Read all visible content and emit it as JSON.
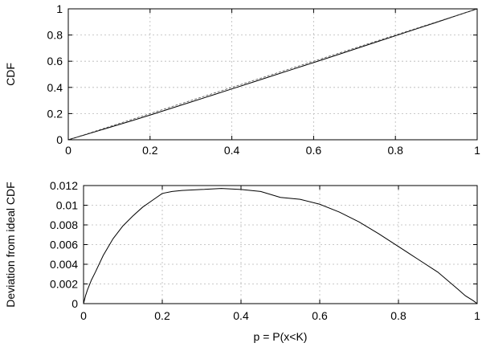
{
  "chart_data": [
    {
      "type": "line",
      "title": "",
      "xlabel": "",
      "ylabel": "CDF",
      "xlim": [
        0,
        1
      ],
      "ylim": [
        0,
        1
      ],
      "xticks": [
        "0",
        "0.2",
        "0.4",
        "0.6",
        "0.8",
        "1"
      ],
      "yticks": [
        "0",
        "0.2",
        "0.4",
        "0.6",
        "0.8",
        "1"
      ],
      "xtick_values": [
        0,
        0.2,
        0.4,
        0.6,
        0.8,
        1
      ],
      "ytick_values": [
        0,
        0.2,
        0.4,
        0.6,
        0.8,
        1
      ],
      "grid": true,
      "series": [
        {
          "x": [
            0,
            0.05,
            0.1,
            0.15,
            0.2,
            0.25,
            0.3,
            0.35,
            0.4,
            0.45,
            0.5,
            0.55,
            0.6,
            0.65,
            0.7,
            0.75,
            0.8,
            0.85,
            0.9,
            0.95,
            1
          ],
          "y": [
            0,
            0.0465,
            0.0935,
            0.1405,
            0.1888,
            0.2386,
            0.2884,
            0.3383,
            0.3884,
            0.4386,
            0.4892,
            0.5396,
            0.5899,
            0.6402,
            0.6918,
            0.743,
            0.7942,
            0.8455,
            0.8967,
            0.9484,
            1
          ]
        },
        {
          "x": [
            0,
            1
          ],
          "y": [
            0,
            1
          ]
        }
      ]
    },
    {
      "type": "line",
      "title": "",
      "xlabel": "p = P(x<K)",
      "ylabel": "Deviation from ideal CDF",
      "xlim": [
        0,
        1
      ],
      "ylim": [
        0,
        0.012
      ],
      "xticks": [
        "0",
        "0.2",
        "0.4",
        "0.6",
        "0.8",
        "1"
      ],
      "yticks": [
        "0",
        "0.002",
        "0.004",
        "0.006",
        "0.008",
        "0.01",
        "0.012"
      ],
      "xtick_values": [
        0,
        0.2,
        0.4,
        0.6,
        0.8,
        1
      ],
      "ytick_values": [
        0,
        0.002,
        0.004,
        0.006,
        0.008,
        0.01,
        0.012
      ],
      "grid": true,
      "series": [
        {
          "x": [
            0,
            0.005,
            0.01,
            0.02,
            0.03,
            0.05,
            0.075,
            0.1,
            0.125,
            0.15,
            0.175,
            0.2,
            0.225,
            0.25,
            0.3,
            0.35,
            0.4,
            0.45,
            0.5,
            0.55,
            0.6,
            0.65,
            0.7,
            0.75,
            0.8,
            0.85,
            0.9,
            0.95,
            0.97,
            0.99,
            1
          ],
          "y": [
            0,
            0.0008,
            0.0014,
            0.0024,
            0.0032,
            0.0049,
            0.0066,
            0.0079,
            0.0089,
            0.0098,
            0.0105,
            0.0112,
            0.0114,
            0.0115,
            0.0116,
            0.0117,
            0.0116,
            0.0114,
            0.0108,
            0.0106,
            0.0101,
            0.0093,
            0.0083,
            0.0071,
            0.0058,
            0.0045,
            0.0032,
            0.0015,
            0.0008,
            0.0003,
            0
          ]
        }
      ]
    }
  ]
}
